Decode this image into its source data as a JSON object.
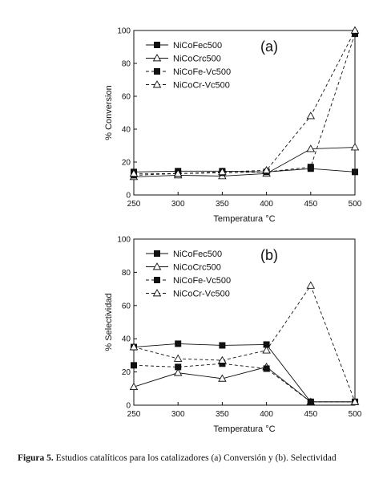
{
  "caption": {
    "label": "Figura 5.",
    "text": "Estudios catalíticos para los catalizadores (a) Conversión y (b). Selectividad"
  },
  "chart_data": [
    {
      "type": "line",
      "panel_label": "(a)",
      "xlabel": "Temperatura °C",
      "ylabel": "% Conversion",
      "xlim": [
        250,
        500
      ],
      "ylim": [
        0,
        100
      ],
      "x_ticks": [
        250,
        300,
        350,
        400,
        450,
        500
      ],
      "y_ticks": [
        0,
        20,
        40,
        60,
        80,
        100
      ],
      "legend_position": "top-left",
      "x": [
        250,
        300,
        350,
        400,
        450,
        500
      ],
      "series": [
        {
          "name": "NiCoFec500",
          "marker": "square-filled",
          "line": "solid",
          "values": [
            14,
            14.5,
            14.5,
            14,
            16,
            14
          ]
        },
        {
          "name": "NiCoCrc500",
          "marker": "triangle-open",
          "line": "solid",
          "values": [
            11,
            12,
            11.5,
            13,
            28,
            29
          ]
        },
        {
          "name": "NiCoFe-Vc500",
          "marker": "square-filled",
          "line": "dashed",
          "values": [
            12,
            13,
            13.5,
            14,
            17,
            98
          ]
        },
        {
          "name": "NiCoCr-Vc500",
          "marker": "triangle-open",
          "line": "dashed",
          "values": [
            13,
            13,
            14,
            15,
            48,
            100
          ]
        }
      ]
    },
    {
      "type": "line",
      "panel_label": "(b)",
      "xlabel": "Temperatura °C",
      "ylabel": "% Selectividad",
      "xlim": [
        250,
        500
      ],
      "ylim": [
        0,
        100
      ],
      "x_ticks": [
        250,
        300,
        350,
        400,
        450,
        500
      ],
      "y_ticks": [
        0,
        20,
        40,
        60,
        80,
        100
      ],
      "legend_position": "top-left",
      "x": [
        250,
        300,
        350,
        400,
        450,
        500
      ],
      "series": [
        {
          "name": "NiCoFec500",
          "marker": "square-filled",
          "line": "solid",
          "values": [
            35,
            37,
            36,
            36.5,
            2,
            2
          ]
        },
        {
          "name": "NiCoCrc500",
          "marker": "triangle-open",
          "line": "solid",
          "values": [
            11,
            19.5,
            16,
            23,
            2,
            2
          ]
        },
        {
          "name": "NiCoFe-Vc500",
          "marker": "square-filled",
          "line": "dashed",
          "values": [
            24,
            23,
            25,
            22,
            2,
            2
          ]
        },
        {
          "name": "NiCoCr-Vc500",
          "marker": "triangle-open",
          "line": "dashed",
          "values": [
            35,
            28,
            27,
            33,
            72,
            2
          ]
        }
      ]
    }
  ]
}
